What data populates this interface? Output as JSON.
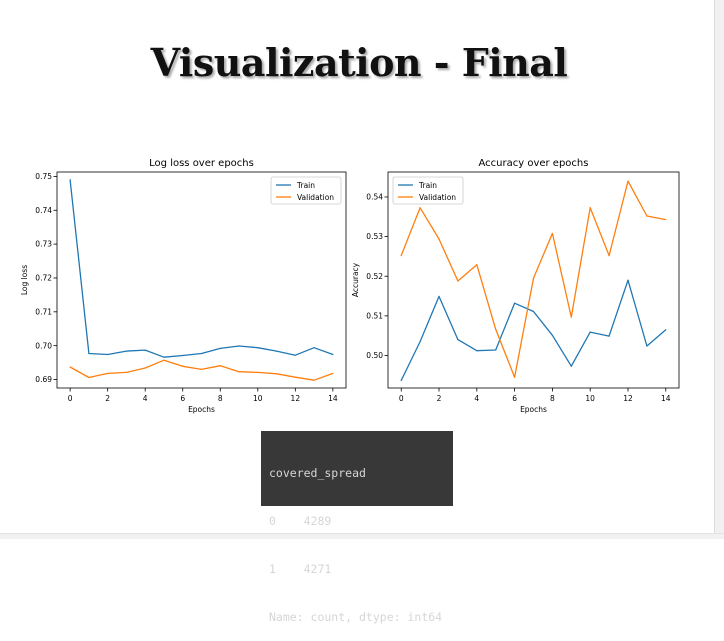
{
  "slide": {
    "title": "Visualization - Final"
  },
  "chart_data": [
    {
      "type": "line",
      "title": "Log loss over epochs",
      "xlabel": "Epochs",
      "ylabel": "Log loss",
      "x": [
        0,
        1,
        2,
        3,
        4,
        5,
        6,
        7,
        8,
        9,
        10,
        11,
        12,
        13,
        14
      ],
      "xticks": [
        0,
        2,
        4,
        6,
        8,
        10,
        12,
        14
      ],
      "yticks": [
        0.69,
        0.7,
        0.71,
        0.72,
        0.73,
        0.74,
        0.75
      ],
      "ytick_labels": [
        "0.69",
        "0.70",
        "0.71",
        "0.72",
        "0.73",
        "0.74",
        "0.75"
      ],
      "xlim": [
        -0.7,
        14.7
      ],
      "ylim": [
        0.6875,
        0.7513
      ],
      "grid": false,
      "legend_position": "upper right",
      "series": [
        {
          "name": "Train",
          "color": "#1f77b4",
          "values": [
            0.749,
            0.6977,
            0.6974,
            0.6984,
            0.6987,
            0.6966,
            0.6971,
            0.6977,
            0.6992,
            0.6999,
            0.6994,
            0.6984,
            0.6972,
            0.6994,
            0.6974
          ]
        },
        {
          "name": "Validation",
          "color": "#ff7f0e",
          "values": [
            0.6937,
            0.6906,
            0.6918,
            0.6921,
            0.6934,
            0.6957,
            0.6939,
            0.693,
            0.6941,
            0.6923,
            0.6921,
            0.6917,
            0.6907,
            0.6898,
            0.6918
          ]
        }
      ]
    },
    {
      "type": "line",
      "title": "Accuracy over epochs",
      "xlabel": "Epochs",
      "ylabel": "Accuracy",
      "x": [
        0,
        1,
        2,
        3,
        4,
        5,
        6,
        7,
        8,
        9,
        10,
        11,
        12,
        13,
        14
      ],
      "xticks": [
        0,
        2,
        4,
        6,
        8,
        10,
        12,
        14
      ],
      "yticks": [
        0.5,
        0.51,
        0.52,
        0.53,
        0.54
      ],
      "ytick_labels": [
        "0.50",
        "0.51",
        "0.52",
        "0.53",
        "0.54"
      ],
      "xlim": [
        -0.7,
        14.7
      ],
      "ylim": [
        0.4918,
        0.5463
      ],
      "grid": false,
      "legend_position": "upper left",
      "series": [
        {
          "name": "Train",
          "color": "#1f77b4",
          "values": [
            0.4937,
            0.5035,
            0.5149,
            0.504,
            0.5012,
            0.5014,
            0.5132,
            0.5111,
            0.5051,
            0.4973,
            0.5059,
            0.5049,
            0.519,
            0.5024,
            0.5065
          ]
        },
        {
          "name": "Validation",
          "color": "#ff7f0e",
          "values": [
            0.5252,
            0.5373,
            0.5294,
            0.5188,
            0.5229,
            0.5066,
            0.4945,
            0.5195,
            0.5308,
            0.5097,
            0.5373,
            0.5252,
            0.544,
            0.5352,
            0.5343
          ]
        }
      ]
    }
  ],
  "console": {
    "lines": [
      "covered_spread",
      "0    4289",
      "1    4271",
      "Name: count, dtype: int64"
    ]
  }
}
